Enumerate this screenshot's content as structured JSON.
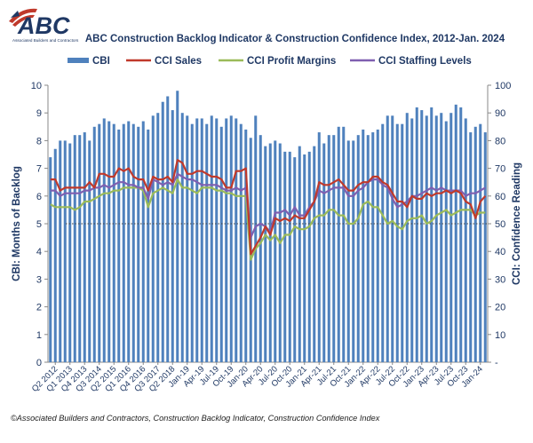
{
  "logo": {
    "brand": "ABC",
    "tagline": "Associated Builders and Contractors"
  },
  "footer": "©Associated Builders and Contractors, Construction Backlog Indicator, Construction Confidence Index",
  "colors": {
    "cbi": "#4f81bd",
    "sales": "#c0392b",
    "profit": "#9bbb59",
    "staffing": "#7f5fb0",
    "title": "#1f3864"
  },
  "chart_data": {
    "type": "bar",
    "title": "ABC Construction Backlog Indicator & Construction Confidence Index, 2012-Jan. 2024",
    "ylabel": "CBI: Months of Backlog",
    "y2label": "CCI: Confidence Reading",
    "ylim": [
      0,
      10
    ],
    "y2lim": [
      0,
      100
    ],
    "yticks": [
      "0",
      "1",
      "2",
      "3",
      "4",
      "5",
      "6",
      "7",
      "8",
      "9",
      "10"
    ],
    "y2ticks": [
      "-",
      "10",
      "20",
      "30",
      "40",
      "50",
      "60",
      "70",
      "80",
      "90",
      "100"
    ],
    "reference_line_y2": 50,
    "xticks": [
      {
        "i": 1,
        "label": "Q2 2012"
      },
      {
        "i": 4,
        "label": "Q1 2013"
      },
      {
        "i": 7,
        "label": "Q4 2013"
      },
      {
        "i": 10,
        "label": "Q3 2014"
      },
      {
        "i": 13,
        "label": "Q2 2015"
      },
      {
        "i": 16,
        "label": "Q1 2016"
      },
      {
        "i": 19,
        "label": "Q4 2016"
      },
      {
        "i": 22,
        "label": "Q3 2017"
      },
      {
        "i": 25,
        "label": "Q2 2018"
      },
      {
        "i": 28,
        "label": "Jan-19"
      },
      {
        "i": 31,
        "label": "Apr-19"
      },
      {
        "i": 34,
        "label": "Jul-19"
      },
      {
        "i": 37,
        "label": "Oct-19"
      },
      {
        "i": 40,
        "label": "Jan-20"
      },
      {
        "i": 43,
        "label": "Apr-20"
      },
      {
        "i": 46,
        "label": "Jul-20"
      },
      {
        "i": 49,
        "label": "Oct-20"
      },
      {
        "i": 52,
        "label": "Jan-21"
      },
      {
        "i": 55,
        "label": "Apr-21"
      },
      {
        "i": 58,
        "label": "Jul-21"
      },
      {
        "i": 61,
        "label": "Oct-21"
      },
      {
        "i": 64,
        "label": "Jan-22"
      },
      {
        "i": 67,
        "label": "Apr-22"
      },
      {
        "i": 70,
        "label": "Jul-22"
      },
      {
        "i": 73,
        "label": "Oct-22"
      },
      {
        "i": 76,
        "label": "Jan-23"
      },
      {
        "i": 79,
        "label": "Apr-23"
      },
      {
        "i": 82,
        "label": "Jul-23"
      },
      {
        "i": 85,
        "label": "Oct-23"
      },
      {
        "i": 88,
        "label": "Jan-24"
      }
    ],
    "series": [
      {
        "name": "CBI",
        "kind": "bar",
        "axis": "left",
        "values": [
          7.4,
          7.7,
          8.0,
          8.0,
          7.9,
          8.2,
          8.2,
          8.3,
          8.0,
          8.5,
          8.6,
          8.8,
          8.7,
          8.6,
          8.4,
          8.6,
          8.7,
          8.6,
          8.5,
          8.7,
          8.4,
          8.9,
          9.0,
          9.4,
          9.6,
          9.1,
          9.8,
          9.0,
          8.9,
          8.6,
          8.8,
          8.8,
          8.6,
          8.9,
          8.8,
          8.5,
          8.8,
          8.9,
          8.8,
          8.6,
          8.4,
          8.1,
          8.9,
          8.2,
          7.8,
          7.9,
          8.0,
          7.9,
          7.6,
          7.6,
          7.4,
          7.8,
          7.5,
          7.6,
          7.8,
          8.3,
          7.9,
          8.2,
          8.2,
          8.5,
          8.5,
          8.0,
          8.0,
          8.2,
          8.4,
          8.2,
          8.3,
          8.4,
          8.6,
          8.9,
          8.9,
          8.6,
          8.6,
          9.0,
          8.8,
          9.2,
          9.1,
          8.9,
          9.2,
          8.9,
          9.0,
          8.7,
          9.0,
          9.3,
          9.2,
          8.8,
          8.3,
          8.5,
          8.6,
          8.3
        ]
      },
      {
        "name": "CCI Sales",
        "kind": "line",
        "axis": "right",
        "values": [
          66,
          66,
          62,
          63,
          63,
          63,
          63,
          63,
          65,
          63,
          68,
          68,
          67,
          67,
          70,
          69,
          70,
          67,
          66,
          66,
          62,
          67,
          66,
          66,
          67,
          65,
          73,
          72,
          68,
          68,
          69,
          69,
          68,
          67,
          67,
          66,
          63,
          63,
          69,
          69,
          70,
          39,
          42,
          45,
          49,
          46,
          52,
          51,
          52,
          51,
          53,
          52,
          52,
          55,
          58,
          65,
          64,
          64,
          65,
          66,
          64,
          62,
          62,
          64,
          65,
          65,
          67,
          67,
          65,
          64,
          61,
          58,
          58,
          56,
          60,
          59,
          59,
          61,
          60,
          61,
          61,
          62,
          61,
          62,
          61,
          58,
          57,
          52,
          58,
          60
        ]
      },
      {
        "name": "CCI Profit Margins",
        "kind": "line",
        "axis": "right",
        "values": [
          57,
          56,
          56,
          56,
          56,
          55,
          56,
          58,
          58,
          59,
          60,
          61,
          61,
          62,
          62,
          63,
          63,
          63,
          63,
          62,
          56,
          61,
          62,
          63,
          62,
          61,
          66,
          63,
          63,
          62,
          61,
          63,
          63,
          63,
          62,
          62,
          61,
          61,
          60,
          60,
          60,
          37,
          41,
          43,
          46,
          44,
          46,
          43,
          46,
          46,
          49,
          48,
          48,
          49,
          52,
          53,
          53,
          55,
          55,
          53,
          53,
          50,
          50,
          52,
          57,
          58,
          56,
          56,
          53,
          50,
          51,
          49,
          48,
          51,
          52,
          52,
          53,
          50,
          51,
          53,
          54,
          55,
          53,
          54,
          55,
          55,
          55,
          53,
          54,
          54
        ]
      },
      {
        "name": "CCI Staffing Levels",
        "kind": "line",
        "axis": "right",
        "values": [
          62,
          62,
          60,
          61,
          61,
          61,
          61,
          62,
          62,
          63,
          63,
          64,
          63,
          64,
          65,
          65,
          64,
          64,
          63,
          63,
          59,
          66,
          65,
          64,
          65,
          64,
          68,
          67,
          66,
          66,
          65,
          64,
          64,
          64,
          64,
          63,
          62,
          62,
          63,
          62,
          63,
          45,
          49,
          50,
          49,
          47,
          54,
          54,
          55,
          53,
          56,
          53,
          53,
          56,
          58,
          62,
          61,
          62,
          63,
          63,
          63,
          60,
          60,
          62,
          63,
          65,
          66,
          66,
          64,
          63,
          59,
          56,
          57,
          58,
          60,
          60,
          61,
          62,
          63,
          62,
          63,
          62,
          62,
          62,
          62,
          60,
          61,
          61,
          62,
          63
        ]
      }
    ],
    "legend": "top"
  }
}
